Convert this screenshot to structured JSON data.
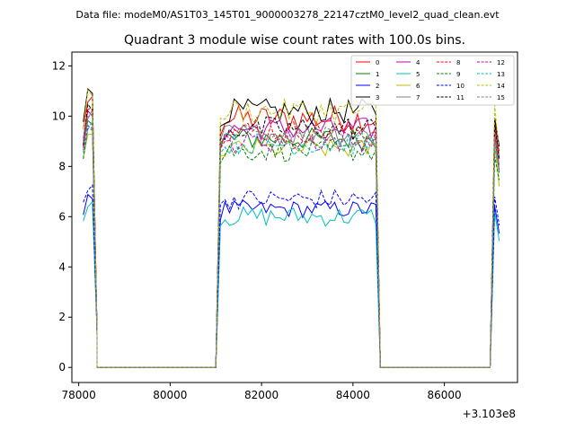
{
  "header": {
    "data_file": "Data file: modeM0/AS1T03_145T01_9000003278_22147cztM0_level2_quad_clean.evt"
  },
  "chart_data": {
    "type": "line",
    "title": "Quadrant 3 module wise count rates with 100.0s bins.",
    "xlabel": "",
    "ylabel": "",
    "x_offset_label": "+3.103e8",
    "xlim": [
      77850,
      87600
    ],
    "ylim": [
      -0.6,
      12.55
    ],
    "x_ticks": [
      78000,
      80000,
      82000,
      84000,
      86000
    ],
    "x_tick_labels": [
      "78000",
      "80000",
      "82000",
      "84000",
      "86000"
    ],
    "y_ticks": [
      0,
      2,
      4,
      6,
      8,
      10,
      12
    ],
    "y_tick_labels": [
      "0",
      "2",
      "4",
      "6",
      "8",
      "10",
      "12"
    ],
    "legend_position": "top-right",
    "segments": [
      {
        "start": 78100,
        "n": 4,
        "shape": "high_then_drop"
      },
      {
        "start": 78400,
        "n": 26,
        "shape": "zero"
      },
      {
        "start": 81000,
        "n": 37,
        "shape": "rise_plateau_fall"
      },
      {
        "start": 84700,
        "n": 24,
        "shape": "zero"
      },
      {
        "start": 87100,
        "n": 2,
        "shape": "rise_end"
      }
    ],
    "series": [
      {
        "name": "0",
        "color": "#ff0000",
        "dash": "solid",
        "level": 9.9,
        "amp": 0.55
      },
      {
        "name": "1",
        "color": "#008000",
        "dash": "solid",
        "level": 9.1,
        "amp": 0.45
      },
      {
        "name": "2",
        "color": "#0000ff",
        "dash": "solid",
        "level": 6.3,
        "amp": 0.35
      },
      {
        "name": "3",
        "color": "#000000",
        "dash": "solid",
        "level": 10.2,
        "amp": 0.5
      },
      {
        "name": "4",
        "color": "#bf00bf",
        "dash": "solid",
        "level": 9.5,
        "amp": 0.45
      },
      {
        "name": "5",
        "color": "#00bfbf",
        "dash": "solid",
        "level": 6.0,
        "amp": 0.4
      },
      {
        "name": "6",
        "color": "#bfbf00",
        "dash": "solid",
        "level": 8.7,
        "amp": 0.4
      },
      {
        "name": "7",
        "color": "#808080",
        "dash": "solid",
        "level": 9.3,
        "amp": 0.45
      },
      {
        "name": "8",
        "color": "#ff0000",
        "dash": "dashed",
        "level": 9.4,
        "amp": 0.45
      },
      {
        "name": "9",
        "color": "#008000",
        "dash": "dashed",
        "level": 8.6,
        "amp": 0.4
      },
      {
        "name": "10",
        "color": "#0000ff",
        "dash": "dashed",
        "level": 6.7,
        "amp": 0.4
      },
      {
        "name": "11",
        "color": "#000000",
        "dash": "dashed",
        "level": 9.5,
        "amp": 0.5
      },
      {
        "name": "12",
        "color": "#bf00bf",
        "dash": "dashed",
        "level": 9.0,
        "amp": 0.45
      },
      {
        "name": "13",
        "color": "#00bfbf",
        "dash": "dashed",
        "level": 8.9,
        "amp": 0.45
      },
      {
        "name": "14",
        "color": "#bfbf00",
        "dash": "dashed",
        "level": 10.2,
        "amp": 0.5
      },
      {
        "name": "15",
        "color": "#808080",
        "dash": "dashed",
        "level": 9.2,
        "amp": 0.45
      }
    ]
  }
}
